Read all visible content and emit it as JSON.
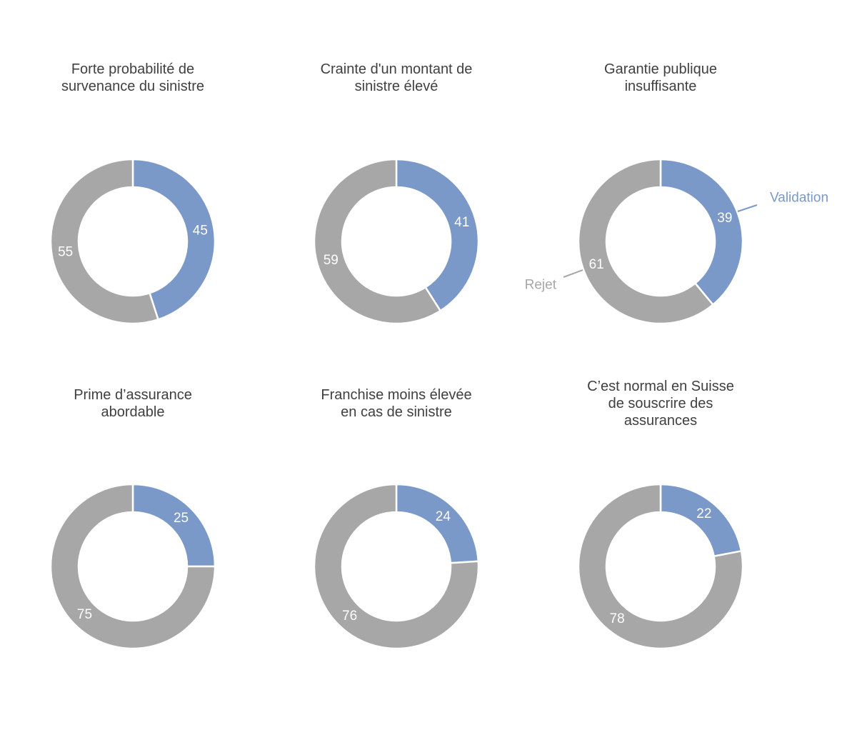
{
  "chart_data": {
    "type": "pie",
    "variant": "donut",
    "legend": "callout labels on the third chart",
    "series_names": {
      "validation": "Validation",
      "rejet": "Rejet"
    },
    "colors": {
      "validation": "#7a98c8",
      "rejet": "#a7a7a7",
      "title": "#404040"
    },
    "charts": [
      {
        "title_lines": [
          "Forte probabilité de",
          "survenance du sinistre"
        ],
        "validation": 45,
        "rejet": 55
      },
      {
        "title_lines": [
          "Crainte d'un montant de",
          "sinistre élevé"
        ],
        "validation": 41,
        "rejet": 59
      },
      {
        "title_lines": [
          "Garantie publique",
          "insuffisante"
        ],
        "validation": 39,
        "rejet": 61
      },
      {
        "title_lines": [
          "Prime d’assurance",
          "abordable"
        ],
        "validation": 25,
        "rejet": 75
      },
      {
        "title_lines": [
          "Franchise moins élevée",
          "en cas de sinistre"
        ],
        "validation": 24,
        "rejet": 76
      },
      {
        "title_lines": [
          "C’est normal en Suisse",
          "de souscrire des",
          "assurances"
        ],
        "validation": 22,
        "rejet": 78
      }
    ]
  }
}
